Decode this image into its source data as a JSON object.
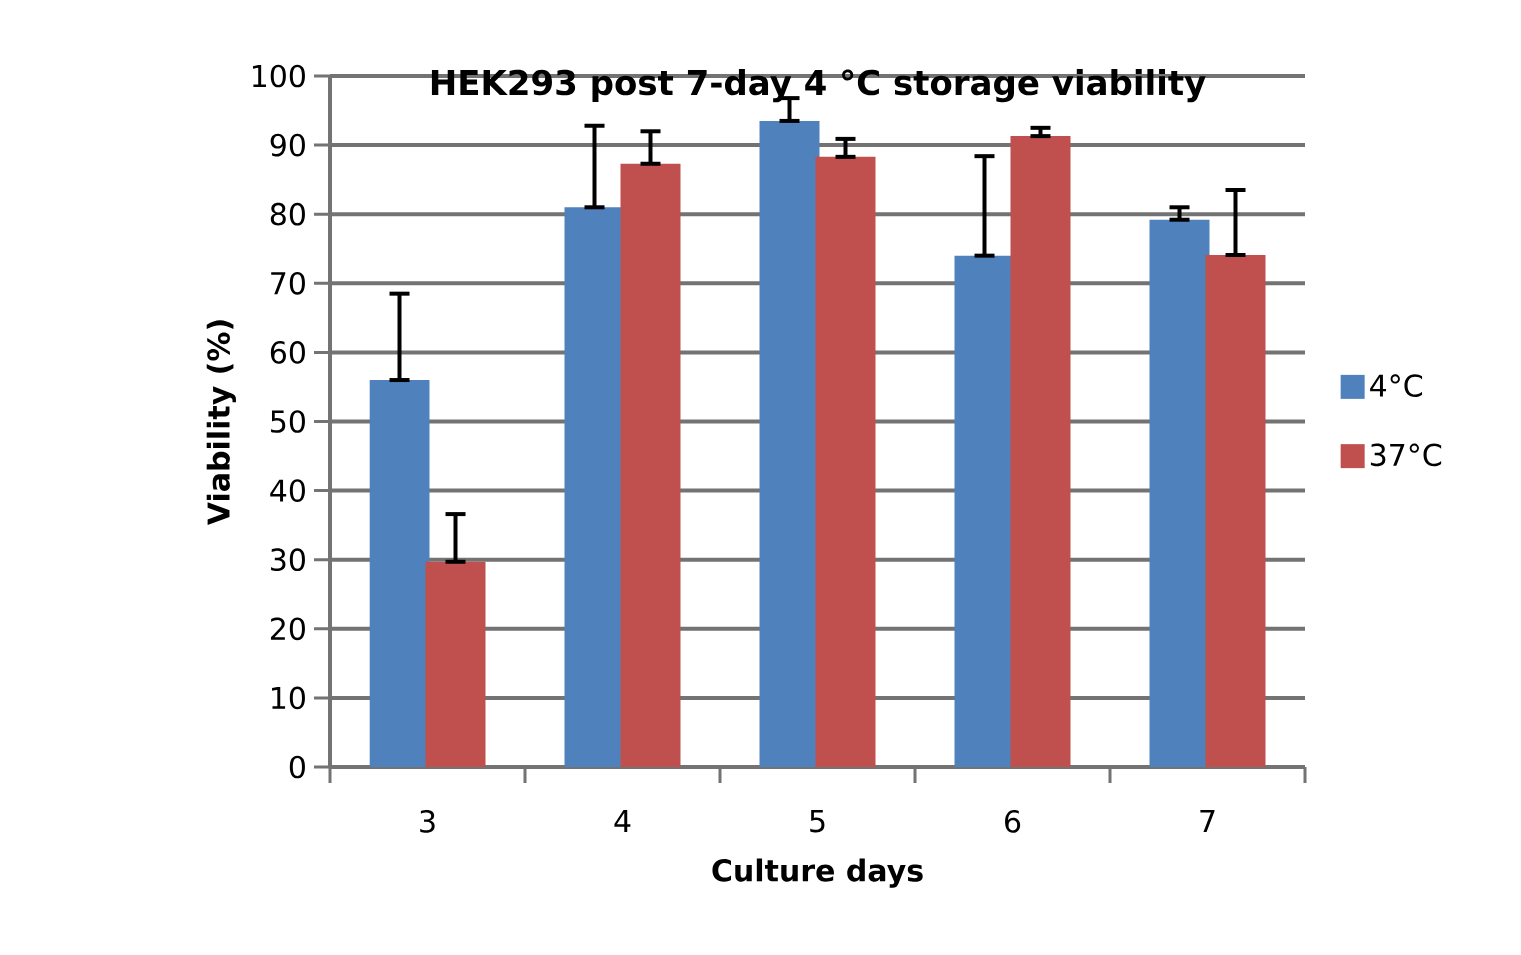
{
  "chart_data": {
    "type": "bar",
    "title": "HEK293 post 7-day 4 °C  storage viability",
    "xlabel": "Culture days",
    "ylabel": "Viability (%)",
    "categories": [
      "3",
      "4",
      "5",
      "6",
      "7"
    ],
    "series": [
      {
        "name": "4°C",
        "color": "#4f81bd",
        "values": [
          56,
          81,
          93.5,
          74,
          79.2
        ],
        "errors": [
          [
            56,
            68.5
          ],
          [
            81,
            92.8
          ],
          [
            93.5,
            96.8
          ],
          [
            74,
            88.4
          ],
          [
            79.2,
            81
          ]
        ]
      },
      {
        "name": "37°C",
        "color": "#c0504d",
        "values": [
          29.7,
          87.3,
          88.3,
          91.3,
          74.1
        ],
        "errors": [
          [
            29.7,
            36.6
          ],
          [
            87.3,
            92
          ],
          [
            88.3,
            90.9
          ],
          [
            91.3,
            92.5
          ],
          [
            74.1,
            83.5
          ]
        ]
      }
    ],
    "ylim": [
      0,
      100
    ],
    "yticks": [
      0,
      10,
      20,
      30,
      40,
      50,
      60,
      70,
      80,
      90,
      100
    ],
    "grid": "y",
    "legend": "right"
  }
}
